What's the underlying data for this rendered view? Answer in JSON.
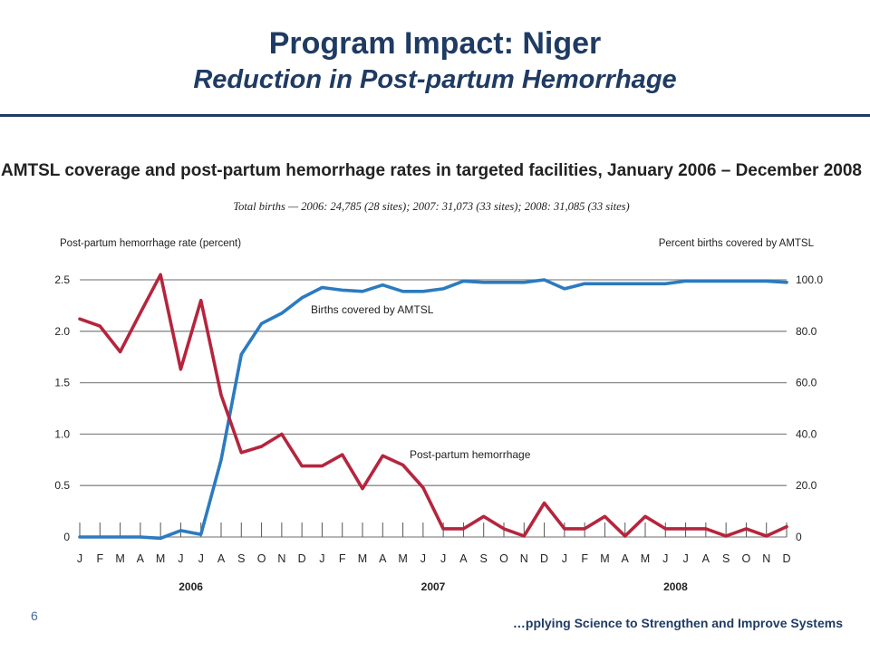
{
  "slide": {
    "title": "Program Impact: Niger",
    "subtitle": "Reduction in Post-partum Hemorrhage",
    "page_number": "6",
    "footer": "…pplying Science to Strengthen and Improve Systems",
    "accent_color": "#1f3b63"
  },
  "chart_data": {
    "type": "line",
    "title": "AMTSL coverage and post-partum hemorrhage rates in targeted facilities, January 2006 – December  2008",
    "subtitle": "Total births — 2006: 24,785 (28 sites);  2007: 31,073 (33 sites);  2008: 31,085 (33 sites)",
    "y_left_label": "Post-partum hemorrhage rate (percent)",
    "y_right_label": "Percent births covered by AMTSL",
    "y_left_ticks": [
      "0",
      "0.5",
      "1.0",
      "1.5",
      "2.0",
      "2.5"
    ],
    "y_right_ticks": [
      "0",
      "20.0",
      "40.0",
      "60.0",
      "80.0",
      "100.0"
    ],
    "ylim_left": [
      0,
      2.5
    ],
    "ylim_right": [
      0,
      100
    ],
    "grid": true,
    "months": [
      "J",
      "F",
      "M",
      "A",
      "M",
      "J",
      "J",
      "A",
      "S",
      "O",
      "N",
      "D",
      "J",
      "F",
      "M",
      "A",
      "M",
      "J",
      "J",
      "A",
      "S",
      "O",
      "N",
      "D",
      "J",
      "F",
      "M",
      "A",
      "M",
      "J",
      "J",
      "A",
      "S",
      "O",
      "N",
      "D"
    ],
    "years": [
      "2006",
      "2007",
      "2008"
    ],
    "series": [
      {
        "name": "Births covered by AMTSL",
        "axis": "right",
        "color": "#2b7bbf",
        "values": [
          0,
          0,
          0,
          0,
          -0.5,
          2.5,
          1,
          30,
          71,
          83,
          87,
          93,
          97,
          96,
          95.5,
          98,
          95.5,
          95.5,
          96.5,
          99.5,
          99,
          99,
          99,
          100,
          96.5,
          98.5,
          98.5,
          98.5,
          98.5,
          98.5,
          99.5,
          99.5,
          99.5,
          99.5,
          99.5,
          99
        ]
      },
      {
        "name": "Post-partum hemorrhage",
        "axis": "left",
        "color": "#b5253d",
        "values": [
          2.12,
          2.05,
          1.8,
          2.18,
          2.55,
          1.63,
          2.3,
          1.38,
          0.82,
          0.88,
          1.0,
          0.69,
          0.69,
          0.8,
          0.47,
          0.79,
          0.7,
          0.48,
          0.08,
          0.08,
          0.2,
          0.08,
          0.01,
          0.33,
          0.08,
          0.08,
          0.2,
          0.01,
          0.2,
          0.08,
          0.08,
          0.08,
          0.01,
          0.08,
          0.01,
          0.1
        ]
      }
    ]
  }
}
